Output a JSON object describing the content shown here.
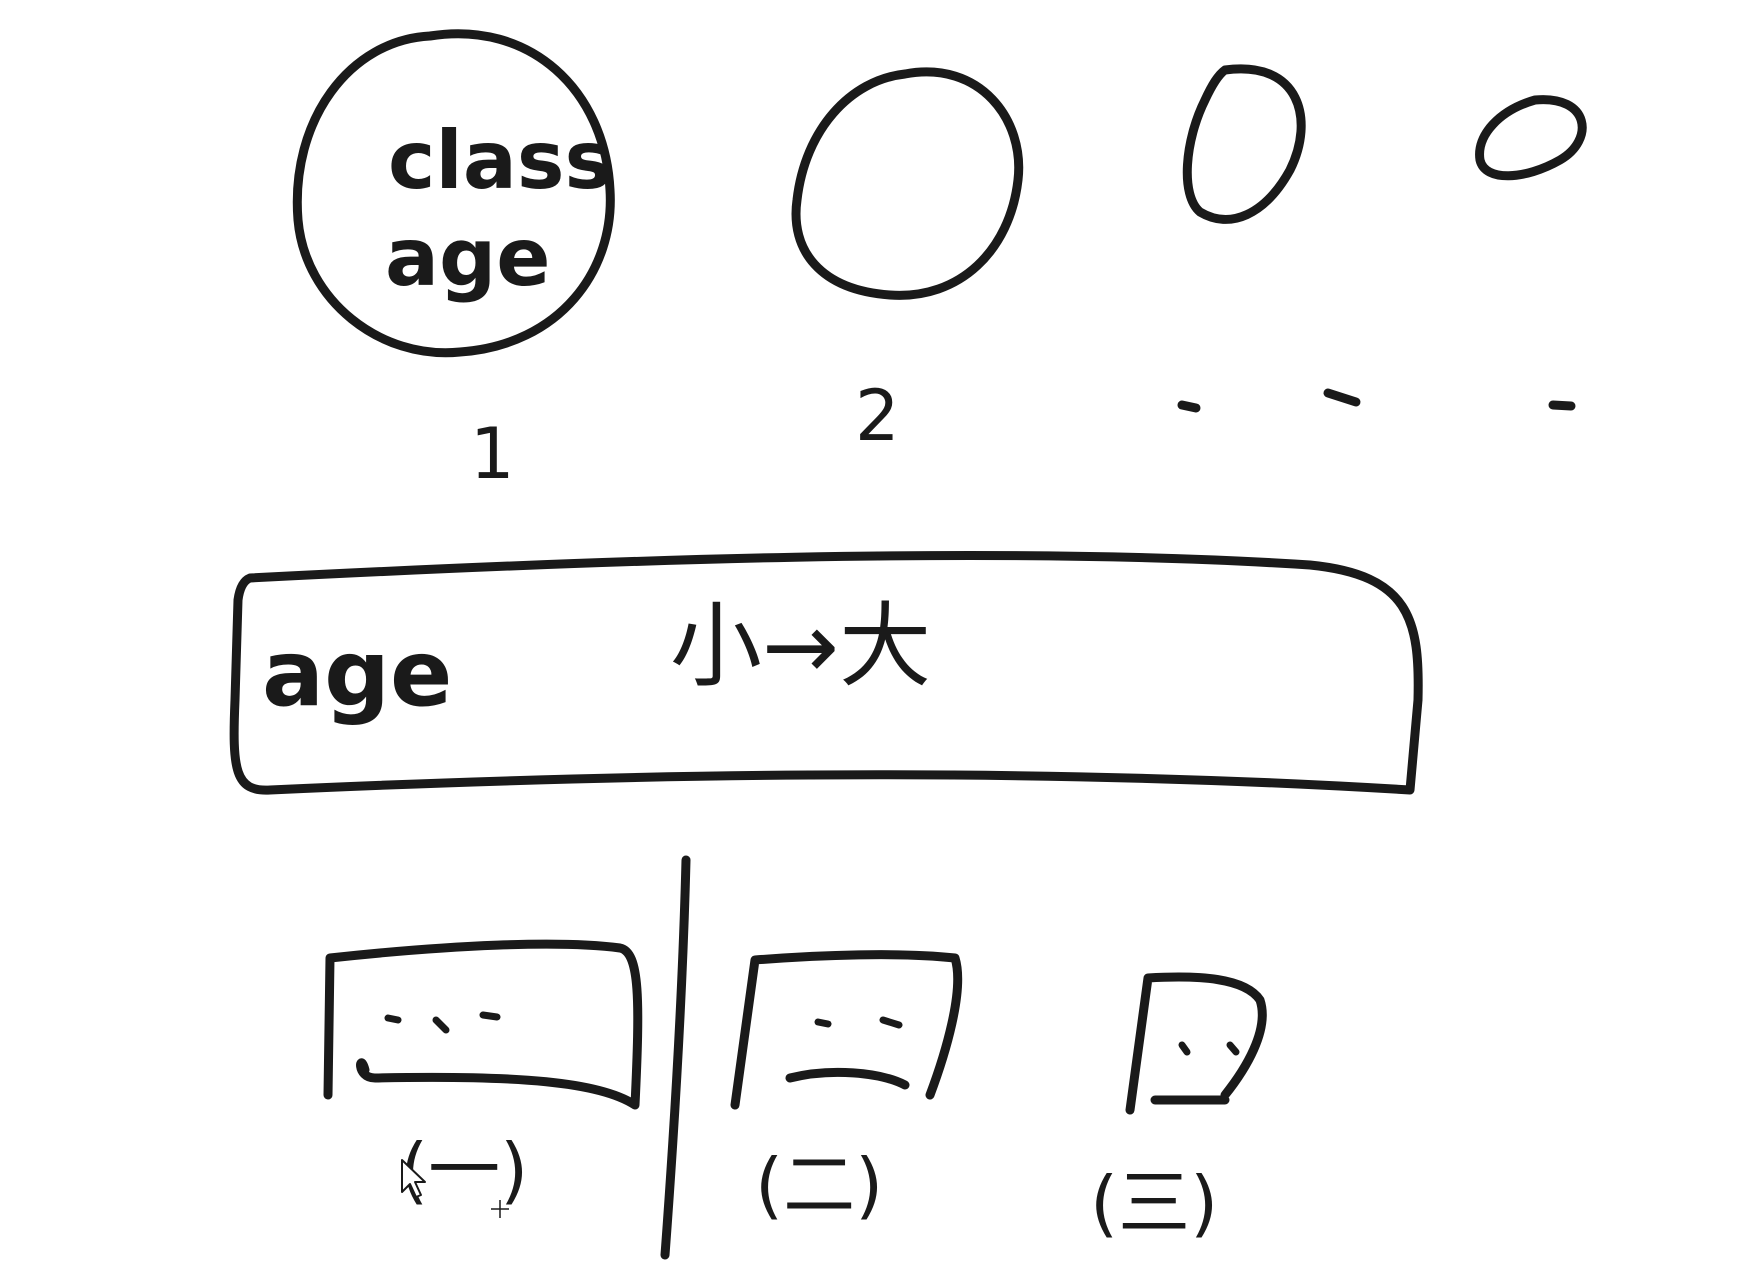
{
  "top_row": {
    "circle_1": {
      "line1": "class",
      "line2": "age"
    },
    "labels": {
      "first": "1",
      "second": "2"
    }
  },
  "sort_bar": {
    "label": "age",
    "note": "小→大"
  },
  "groups": [
    {
      "label": "(一)"
    },
    {
      "label": "(二)"
    },
    {
      "label": "(三)"
    }
  ]
}
